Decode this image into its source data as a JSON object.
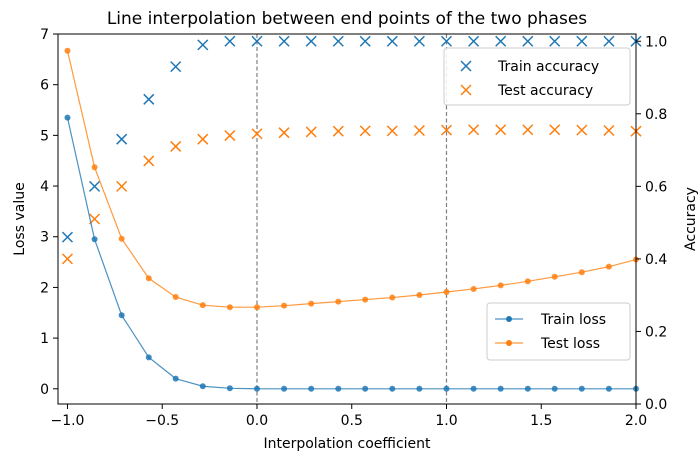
{
  "chart_data": {
    "type": "line",
    "title": "Line interpolation between end points of the two phases",
    "xlabel": "Interpolation coefficient",
    "ylabel_left": "Loss value",
    "ylabel_right": "Accuracy",
    "xlim": [
      -1.05,
      2.0
    ],
    "ylim_left": [
      -0.3,
      7.0
    ],
    "ylim_right": [
      0.0,
      1.02
    ],
    "x_ticks": [
      -1.0,
      -0.5,
      0.0,
      0.5,
      1.0,
      1.5,
      2.0
    ],
    "x_tick_labels": [
      "−1.0",
      "−0.5",
      "0.0",
      "0.5",
      "1.0",
      "1.5",
      "2.0"
    ],
    "y_left_ticks": [
      0,
      1,
      2,
      3,
      4,
      5,
      6,
      7
    ],
    "y_left_tick_labels": [
      "0",
      "1",
      "2",
      "3",
      "4",
      "5",
      "6",
      "7"
    ],
    "y_right_ticks": [
      0.0,
      0.2,
      0.4,
      0.6,
      0.8,
      1.0
    ],
    "y_right_tick_labels": [
      "0.0",
      "0.2",
      "0.4",
      "0.6",
      "0.8",
      "1.0"
    ],
    "vlines": [
      0.0,
      1.0
    ],
    "x": [
      -1.0,
      -0.857,
      -0.714,
      -0.571,
      -0.429,
      -0.286,
      -0.143,
      0.0,
      0.143,
      0.286,
      0.429,
      0.571,
      0.714,
      0.857,
      1.0,
      1.143,
      1.286,
      1.429,
      1.571,
      1.714,
      1.857,
      2.0
    ],
    "series": [
      {
        "name": "Train accuracy",
        "axis": "right",
        "style": "x-marker",
        "color": "#1f77b4",
        "values": [
          0.46,
          0.6,
          0.73,
          0.84,
          0.93,
          0.99,
          1.0,
          1.0,
          1.0,
          1.0,
          1.0,
          1.0,
          1.0,
          1.0,
          1.0,
          1.0,
          1.0,
          1.0,
          1.0,
          1.0,
          1.0,
          1.0
        ]
      },
      {
        "name": "Test accuracy",
        "axis": "right",
        "style": "x-marker",
        "color": "#ff7f0e",
        "values": [
          0.4,
          0.51,
          0.6,
          0.67,
          0.71,
          0.73,
          0.74,
          0.745,
          0.748,
          0.75,
          0.752,
          0.753,
          0.753,
          0.754,
          0.755,
          0.756,
          0.756,
          0.756,
          0.756,
          0.755,
          0.754,
          0.752
        ]
      },
      {
        "name": "Train loss",
        "axis": "left",
        "style": "line-dot",
        "color": "#1f77b4",
        "values": [
          5.35,
          2.95,
          1.45,
          0.62,
          0.2,
          0.05,
          0.01,
          0.0,
          0.0,
          0.0,
          0.0,
          0.0,
          0.0,
          0.0,
          0.0,
          0.0,
          0.0,
          0.0,
          0.0,
          0.0,
          0.0,
          0.0
        ]
      },
      {
        "name": "Test loss",
        "axis": "left",
        "style": "line-dot",
        "color": "#ff7f0e",
        "values": [
          6.67,
          4.37,
          2.96,
          2.18,
          1.81,
          1.65,
          1.61,
          1.61,
          1.64,
          1.68,
          1.72,
          1.76,
          1.8,
          1.85,
          1.91,
          1.97,
          2.04,
          2.12,
          2.21,
          2.3,
          2.41,
          2.55
        ]
      }
    ],
    "legend_accuracy": {
      "placement": "top-right",
      "entries": [
        "Train accuracy",
        "Test accuracy"
      ]
    },
    "legend_loss": {
      "placement": "lower-right",
      "entries": [
        "Train loss",
        "Test loss"
      ]
    },
    "grid": false
  }
}
